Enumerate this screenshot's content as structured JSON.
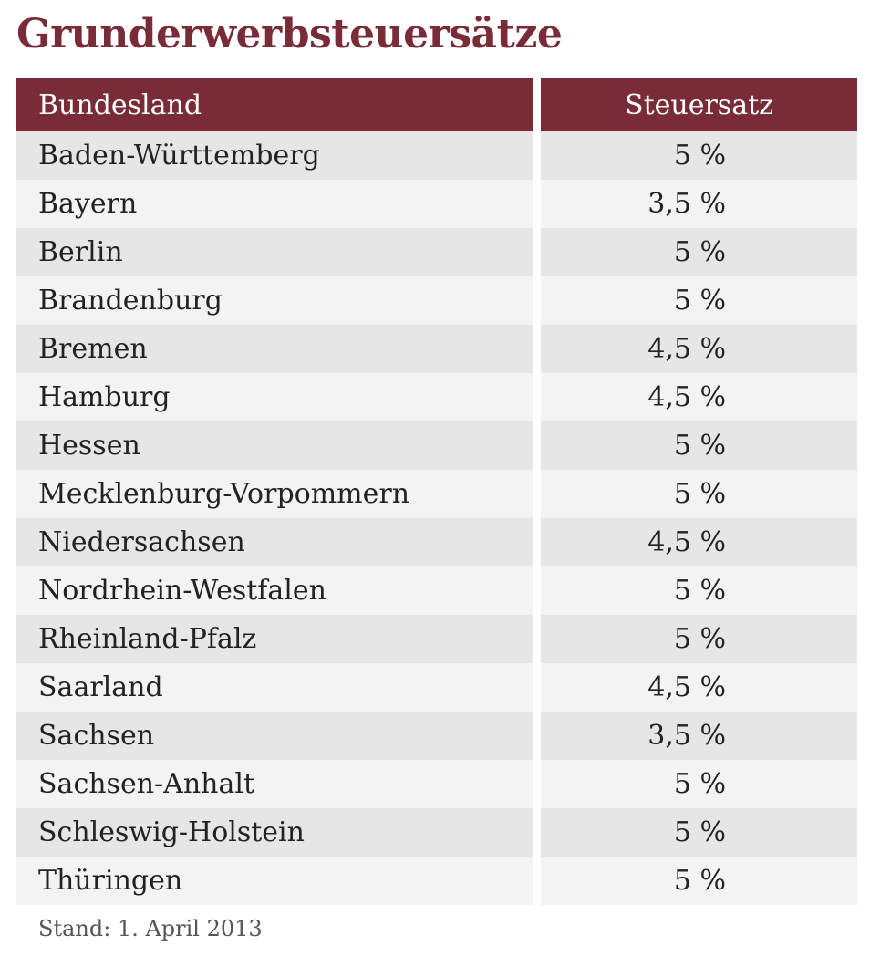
{
  "title": "Grunderwerbsteuersätze",
  "colors": {
    "accent": "#7a2b38",
    "row_dark": "#e6e6e7",
    "row_light": "#f3f3f3",
    "text": "#222222"
  },
  "table": {
    "headers": {
      "state": "Bundesland",
      "rate": "Steuersatz"
    },
    "rows": [
      {
        "state": "Baden-Württemberg",
        "rate": "5 %"
      },
      {
        "state": "Bayern",
        "rate": "3,5 %"
      },
      {
        "state": "Berlin",
        "rate": "5 %"
      },
      {
        "state": "Brandenburg",
        "rate": "5 %"
      },
      {
        "state": "Bremen",
        "rate": "4,5 %"
      },
      {
        "state": "Hamburg",
        "rate": "4,5 %"
      },
      {
        "state": "Hessen",
        "rate": "5 %"
      },
      {
        "state": "Mecklenburg-Vorpommern",
        "rate": "5 %"
      },
      {
        "state": "Niedersachsen",
        "rate": "4,5 %"
      },
      {
        "state": "Nordrhein-Westfalen",
        "rate": "5 %"
      },
      {
        "state": "Rheinland-Pfalz",
        "rate": "5 %"
      },
      {
        "state": "Saarland",
        "rate": "4,5 %"
      },
      {
        "state": "Sachsen",
        "rate": "3,5 %"
      },
      {
        "state": "Sachsen-Anhalt",
        "rate": "5 %"
      },
      {
        "state": "Schleswig-Holstein",
        "rate": "5 %"
      },
      {
        "state": "Thüringen",
        "rate": "5 %"
      }
    ]
  },
  "footnote": "Stand: 1. April 2013"
}
